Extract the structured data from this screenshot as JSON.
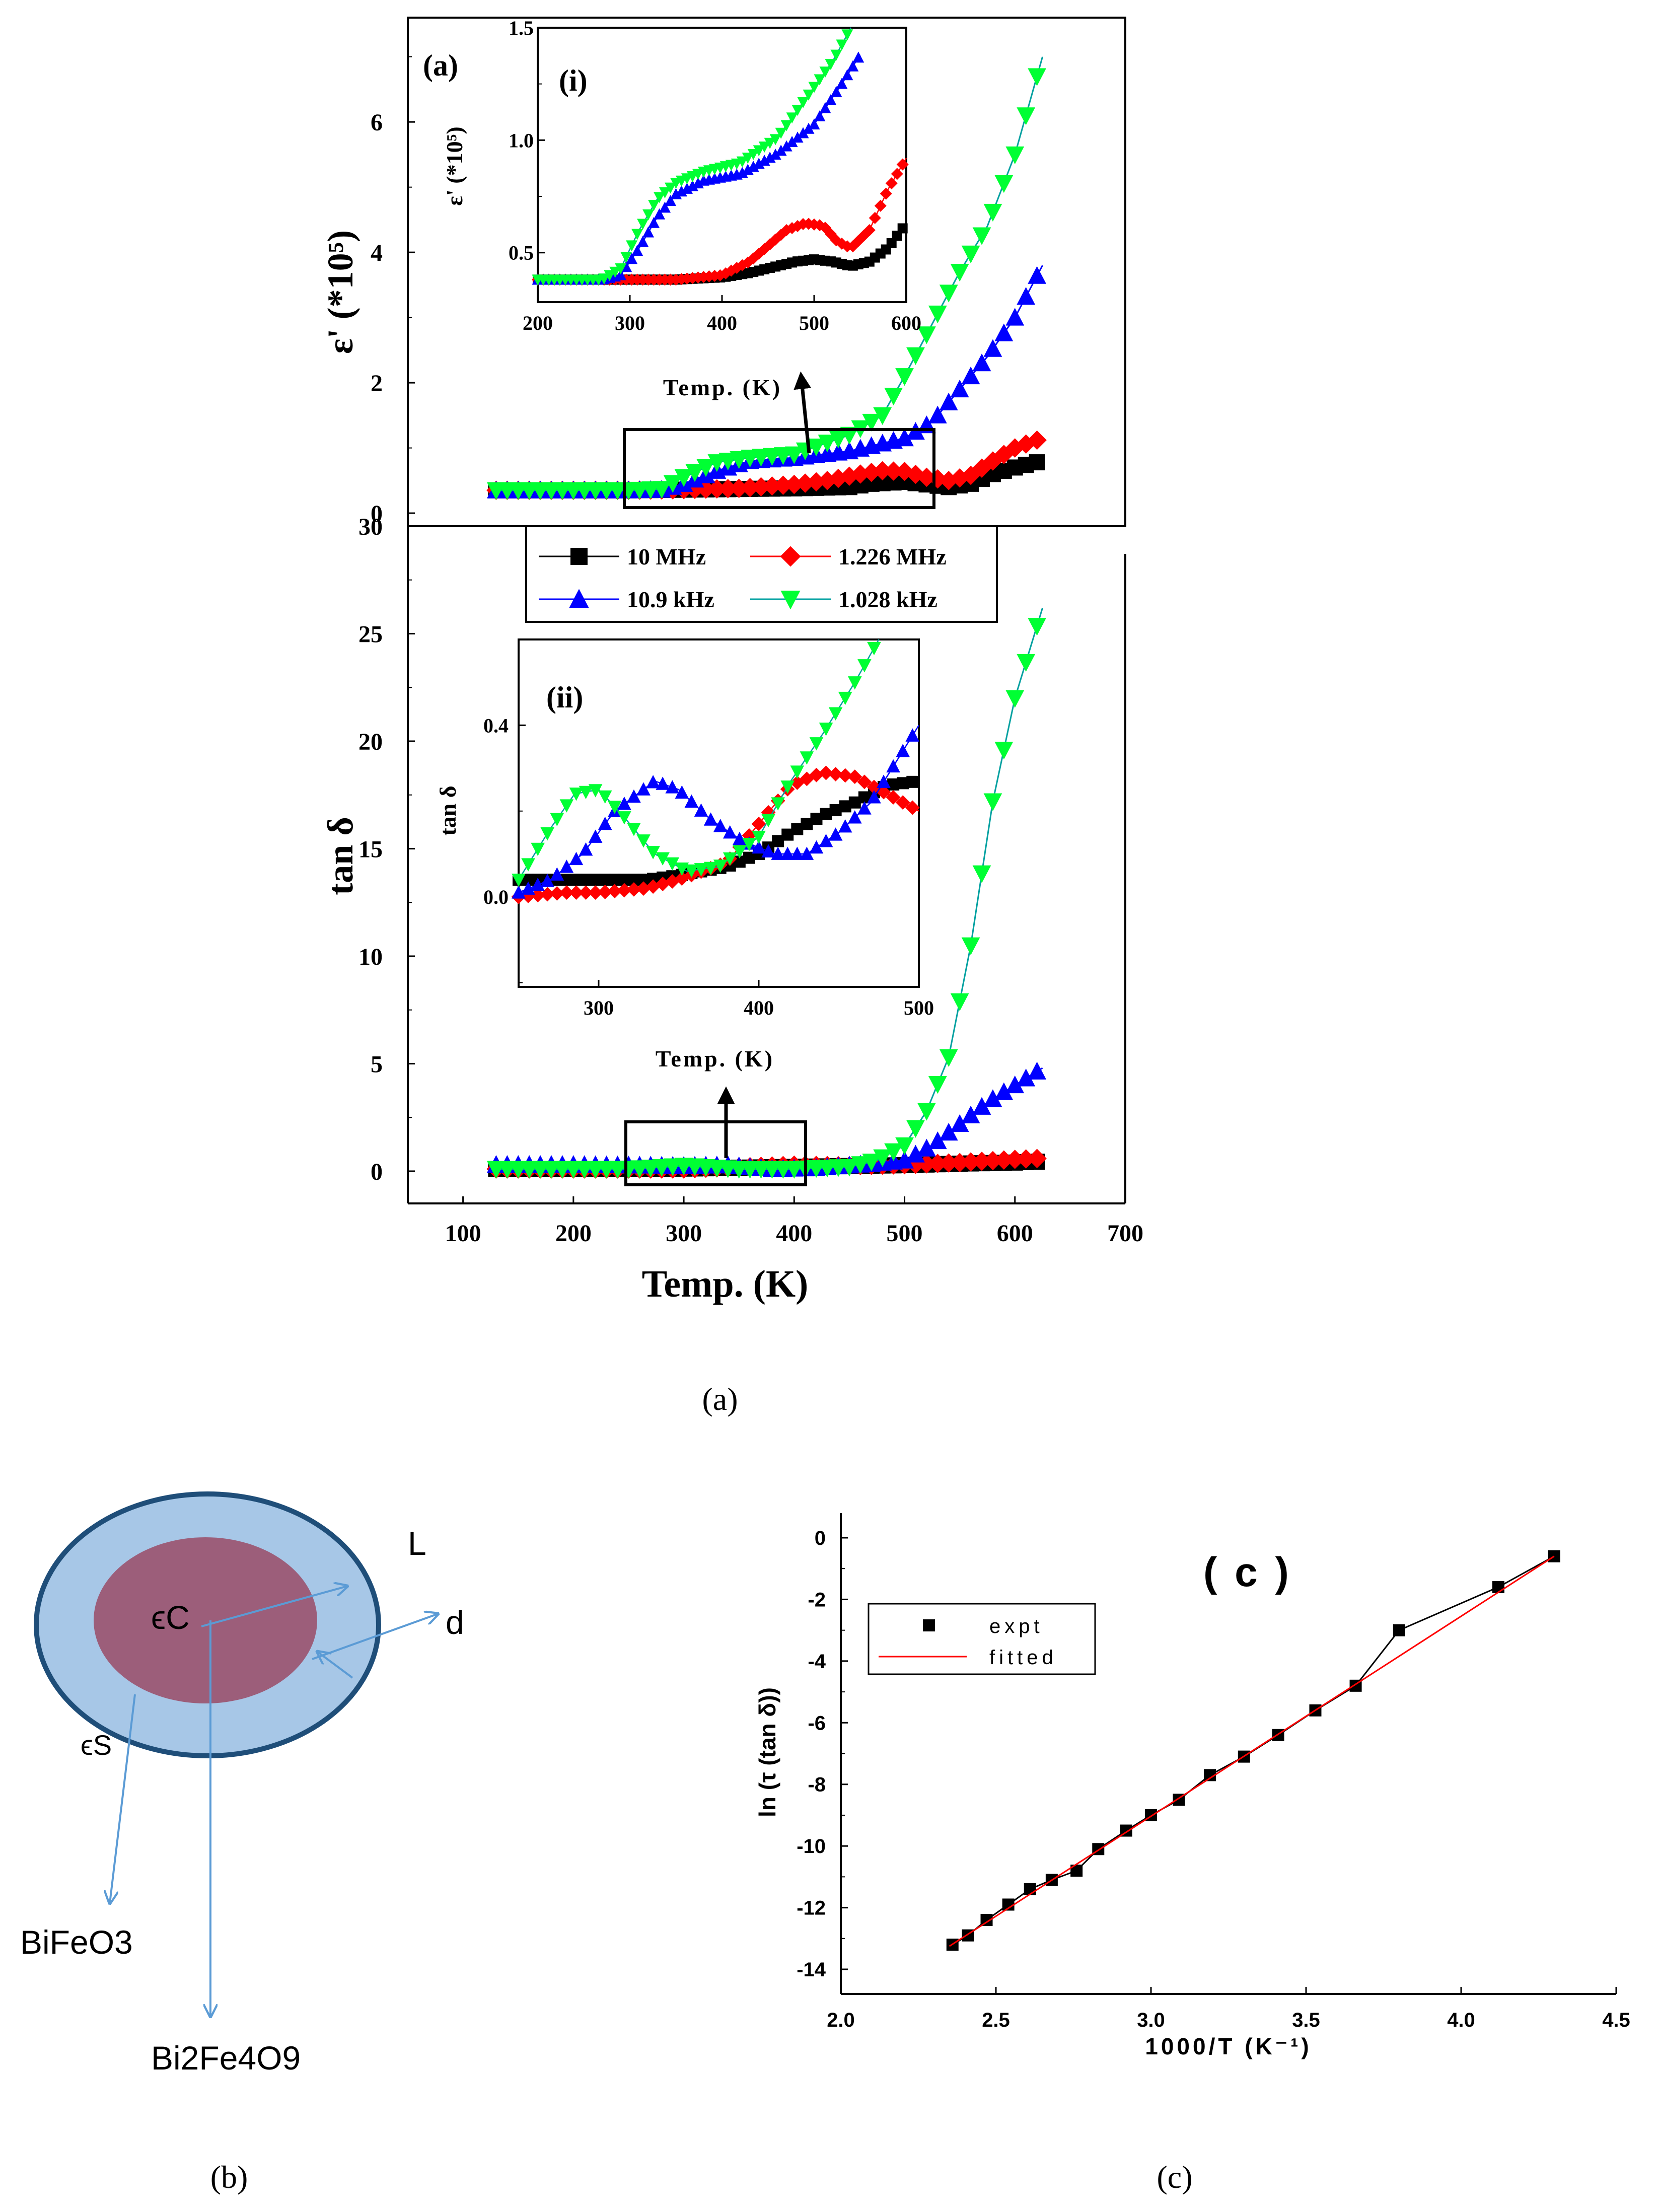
{
  "figure": {
    "captions": {
      "a": "(a)",
      "b": "(b)",
      "c": "(c)"
    }
  },
  "chart_data": [
    {
      "id": "a-top",
      "type": "line",
      "panel_label": "(a)",
      "xlabel": "Temp. (K)",
      "ylabel": "ε' (*10⁵)",
      "xlim": [
        50,
        700
      ],
      "ylim": [
        -0.2,
        7.6
      ],
      "xticks": [
        100,
        200,
        300,
        400,
        500,
        600,
        700
      ],
      "yticks": [
        0,
        2,
        4,
        6
      ],
      "series": [
        {
          "name": "10 MHz",
          "color": "#000000",
          "marker": "square",
          "x": [
            130,
            160,
            200,
            250,
            300,
            350,
            400,
            450,
            470,
            500,
            520,
            540,
            560,
            580,
            600,
            625
          ],
          "y": [
            0.35,
            0.35,
            0.35,
            0.35,
            0.36,
            0.37,
            0.38,
            0.4,
            0.45,
            0.48,
            0.44,
            0.4,
            0.45,
            0.6,
            0.7,
            0.8
          ]
        },
        {
          "name": "1.226 MHz",
          "color": "#ff0000",
          "marker": "diamond",
          "x": [
            130,
            160,
            200,
            250,
            300,
            350,
            400,
            430,
            460,
            480,
            500,
            520,
            540,
            560,
            580,
            600,
            625
          ],
          "y": [
            0.35,
            0.35,
            0.35,
            0.35,
            0.36,
            0.38,
            0.44,
            0.5,
            0.6,
            0.65,
            0.64,
            0.55,
            0.5,
            0.58,
            0.8,
            1.0,
            1.15
          ]
        },
        {
          "name": "10.9 kHz",
          "color": "#0000ff",
          "marker": "triangle-up",
          "x": [
            130,
            200,
            250,
            280,
            300,
            330,
            360,
            400,
            450,
            500,
            525,
            550,
            575,
            600,
            625
          ],
          "y": [
            0.35,
            0.35,
            0.35,
            0.36,
            0.45,
            0.65,
            0.8,
            0.85,
            0.95,
            1.15,
            1.4,
            1.9,
            2.4,
            3.0,
            3.8
          ]
        },
        {
          "name": "1.028 kHz",
          "color": "#00ff33",
          "marker": "triangle-down",
          "x": [
            130,
            200,
            250,
            280,
            300,
            330,
            360,
            400,
            450,
            480,
            500,
            525,
            550,
            575,
            600,
            625
          ],
          "y": [
            0.35,
            0.35,
            0.35,
            0.37,
            0.55,
            0.78,
            0.85,
            0.9,
            1.2,
            1.5,
            2.1,
            2.9,
            3.7,
            4.4,
            5.5,
            7.0
          ]
        }
      ]
    },
    {
      "id": "a-inset-i",
      "type": "line",
      "panel_label": "(i)",
      "xlabel": "Temp. (K)",
      "ylabel": "ε' (*10⁵)",
      "xlim": [
        200,
        600
      ],
      "ylim": [
        0.28,
        1.5
      ],
      "xticks": [
        200,
        300,
        400,
        500,
        600
      ],
      "yticks": [
        0.5,
        1.0,
        1.5
      ],
      "ytick_labels": [
        "0.5",
        "1.0",
        "1.5"
      ],
      "series": [
        {
          "name": "10 MHz",
          "color": "#000000",
          "marker": "square",
          "x": [
            200,
            250,
            300,
            350,
            400,
            430,
            460,
            480,
            500,
            520,
            540,
            560,
            580,
            600
          ],
          "y": [
            0.38,
            0.38,
            0.38,
            0.38,
            0.39,
            0.41,
            0.44,
            0.46,
            0.47,
            0.46,
            0.44,
            0.46,
            0.52,
            0.63
          ]
        },
        {
          "name": "1.226 MHz",
          "color": "#ff0000",
          "marker": "diamond",
          "x": [
            200,
            250,
            300,
            350,
            400,
            430,
            450,
            470,
            490,
            510,
            525,
            540,
            560,
            580,
            600
          ],
          "y": [
            0.38,
            0.38,
            0.38,
            0.38,
            0.4,
            0.46,
            0.53,
            0.6,
            0.63,
            0.62,
            0.55,
            0.52,
            0.6,
            0.78,
            0.92
          ]
        },
        {
          "name": "10.9 kHz",
          "color": "#0000ff",
          "marker": "triangle-up",
          "x": [
            200,
            250,
            270,
            290,
            310,
            330,
            350,
            380,
            420,
            460,
            500,
            530,
            550
          ],
          "y": [
            0.38,
            0.38,
            0.38,
            0.4,
            0.52,
            0.66,
            0.76,
            0.82,
            0.85,
            0.94,
            1.07,
            1.25,
            1.38
          ]
        },
        {
          "name": "1.028 kHz",
          "color": "#00ff33",
          "marker": "triangle-down",
          "x": [
            200,
            250,
            270,
            290,
            310,
            330,
            350,
            380,
            420,
            460,
            490,
            520,
            540
          ],
          "y": [
            0.38,
            0.38,
            0.38,
            0.43,
            0.6,
            0.74,
            0.81,
            0.86,
            0.9,
            1.01,
            1.18,
            1.35,
            1.5
          ]
        }
      ]
    },
    {
      "id": "a-bottom",
      "type": "line",
      "xlabel": "Temp. (K)",
      "ylabel": "tan δ",
      "xlim": [
        50,
        700
      ],
      "ylim": [
        -1.5,
        30
      ],
      "xticks": [
        100,
        200,
        300,
        400,
        500,
        600,
        700
      ],
      "yticks": [
        0,
        5,
        10,
        15,
        20,
        25,
        30
      ],
      "legend": [
        "10 MHz",
        "1.226 MHz",
        "10.9 kHz",
        "1.028 kHz"
      ],
      "series": [
        {
          "name": "10 MHz",
          "color": "#000000",
          "marker": "square",
          "x": [
            130,
            200,
            300,
            400,
            500,
            550,
            600,
            625
          ],
          "y": [
            0.1,
            0.1,
            0.12,
            0.2,
            0.28,
            0.35,
            0.4,
            0.45
          ]
        },
        {
          "name": "1.226 MHz",
          "color": "#ff0000",
          "marker": "diamond",
          "x": [
            130,
            200,
            300,
            400,
            450,
            500,
            550,
            600,
            625
          ],
          "y": [
            0.1,
            0.1,
            0.1,
            0.28,
            0.25,
            0.3,
            0.4,
            0.55,
            0.6
          ]
        },
        {
          "name": "10.9 kHz",
          "color": "#0000ff",
          "marker": "triangle-up",
          "x": [
            130,
            200,
            300,
            340,
            380,
            420,
            470,
            500,
            525,
            550,
            575,
            600,
            625
          ],
          "y": [
            0.3,
            0.3,
            0.25,
            0.28,
            0.1,
            0.15,
            0.35,
            0.5,
            1.2,
            2.2,
            3.2,
            4.0,
            4.8
          ]
        },
        {
          "name": "1.028 kHz",
          "color": "#00ff33",
          "marker": "triangle-down",
          "x": [
            130,
            200,
            250,
            300,
            350,
            400,
            450,
            475,
            500,
            520,
            540,
            560,
            580,
            600,
            625
          ],
          "y": [
            0.1,
            0.1,
            0.1,
            0.25,
            0.1,
            0.1,
            0.2,
            0.5,
            1.2,
            2.8,
            5.3,
            10.5,
            17.2,
            22.0,
            26.2
          ]
        }
      ]
    },
    {
      "id": "a-inset-ii",
      "type": "line",
      "panel_label": "(ii)",
      "xlabel": "Temp. (K)",
      "ylabel": "tan δ",
      "xlim": [
        250,
        500
      ],
      "ylim": [
        -0.21,
        0.6
      ],
      "xticks": [
        300,
        400,
        500
      ],
      "yticks": [
        0.0,
        0.4
      ],
      "ytick_labels": [
        "0.0",
        "0.4"
      ],
      "series": [
        {
          "name": "10 MHz",
          "color": "#000000",
          "marker": "square",
          "x": [
            250,
            280,
            300,
            330,
            350,
            380,
            400,
            420,
            440,
            460,
            480,
            500
          ],
          "y": [
            0.04,
            0.04,
            0.04,
            0.04,
            0.05,
            0.07,
            0.1,
            0.15,
            0.19,
            0.22,
            0.26,
            0.27
          ]
        },
        {
          "name": "1.226 MHz",
          "color": "#ff0000",
          "marker": "diamond",
          "x": [
            250,
            280,
            300,
            330,
            350,
            380,
            400,
            420,
            440,
            460,
            480,
            500
          ],
          "y": [
            0.0,
            0.01,
            0.01,
            0.02,
            0.04,
            0.08,
            0.17,
            0.26,
            0.29,
            0.28,
            0.24,
            0.2
          ]
        },
        {
          "name": "10.9 kHz",
          "color": "#0000ff",
          "marker": "triangle-up",
          "x": [
            250,
            270,
            290,
            310,
            335,
            350,
            370,
            390,
            410,
            430,
            450,
            470,
            500
          ],
          "y": [
            0.01,
            0.04,
            0.1,
            0.2,
            0.27,
            0.25,
            0.18,
            0.13,
            0.1,
            0.1,
            0.15,
            0.22,
            0.4
          ]
        },
        {
          "name": "1.028 kHz",
          "color": "#00ff33",
          "marker": "triangle-down",
          "x": [
            250,
            270,
            285,
            300,
            315,
            335,
            355,
            375,
            400,
            420,
            440,
            460,
            475
          ],
          "y": [
            0.04,
            0.16,
            0.24,
            0.25,
            0.19,
            0.1,
            0.06,
            0.07,
            0.14,
            0.27,
            0.38,
            0.5,
            0.6
          ]
        }
      ]
    },
    {
      "id": "b",
      "type": "diagram",
      "labels": {
        "L": "L",
        "d": "d",
        "eps_c": "ϵC",
        "eps_s": "ϵS",
        "bifeo3": "BiFeO3",
        "bi2fe4o9": "Bi2Fe4O9"
      },
      "colors": {
        "core": "#9c5e7a",
        "shell": "#a7c7e7",
        "outline": "#1f4e79",
        "arrow": "#5b9bd5"
      }
    },
    {
      "id": "c",
      "type": "scatter",
      "panel_label": "( c )",
      "xlabel": "1000/T (K⁻¹)",
      "ylabel": "ln (τ (tan δ))",
      "xlim": [
        2.0,
        4.5
      ],
      "ylim": [
        -14.8,
        0.8
      ],
      "xticks": [
        2.0,
        2.5,
        3.0,
        3.5,
        4.0,
        4.5
      ],
      "xtick_labels": [
        "2.0",
        "2.5",
        "3.0",
        "3.5",
        "4.0",
        "4.5"
      ],
      "yticks": [
        -14,
        -12,
        -10,
        -8,
        -6,
        -4,
        -2,
        0
      ],
      "legend": [
        "expt",
        "fitted"
      ],
      "series": [
        {
          "name": "expt",
          "color": "#000000",
          "marker": "square",
          "x": [
            2.36,
            2.41,
            2.47,
            2.54,
            2.61,
            2.68,
            2.76,
            2.83,
            2.92,
            3.0,
            3.09,
            3.19,
            3.3,
            3.41,
            3.53,
            3.66,
            3.8,
            4.12,
            4.3
          ],
          "y": [
            -13.2,
            -12.9,
            -12.4,
            -11.9,
            -11.4,
            -11.1,
            -10.8,
            -10.1,
            -9.5,
            -9.0,
            -8.5,
            -7.7,
            -7.1,
            -6.4,
            -5.6,
            -4.8,
            -3.0,
            -1.6,
            -0.6
          ]
        },
        {
          "name": "fitted",
          "color": "#ff0000",
          "marker": "none",
          "x": [
            2.35,
            4.3
          ],
          "y": [
            -13.25,
            -0.6
          ]
        }
      ]
    }
  ]
}
